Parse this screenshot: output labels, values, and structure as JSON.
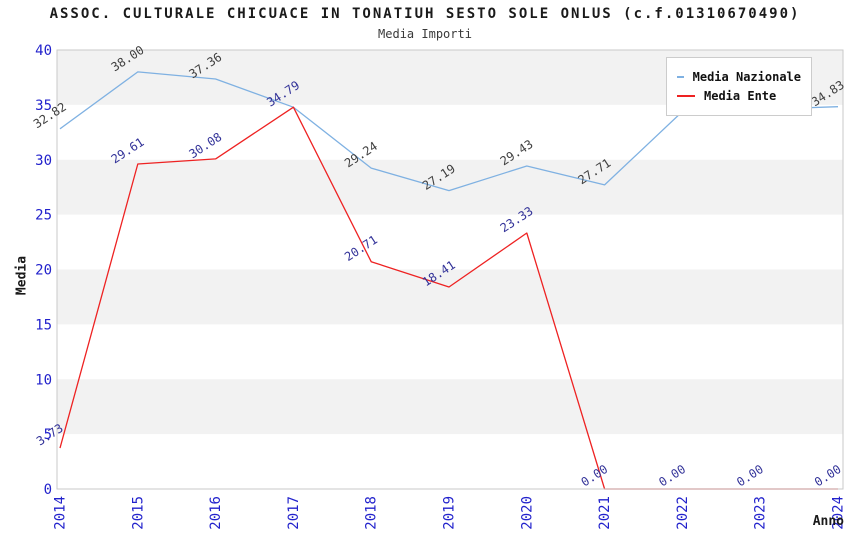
{
  "title": "ASSOC. CULTURALE CHICUACE IN TONATIUH SESTO SOLE ONLUS (c.f.01310670490)",
  "subtitle": "Media Importi",
  "colors": {
    "band": "#f2f2f2",
    "frame": "#c9c9c9",
    "tick_blue": "#2222cc",
    "nazionale_line": "#7fb1e2",
    "ente_line": "#ee2222",
    "nazionale_label": "#404040",
    "ente_label": "#333399"
  },
  "chart_data": {
    "type": "line",
    "x": [
      2014,
      2015,
      2016,
      2017,
      2018,
      2019,
      2020,
      2021,
      2022,
      2023,
      2024
    ],
    "xlabel": "Anno",
    "ylabel": "Media",
    "ylim": [
      0,
      40
    ],
    "yticks": [
      0,
      5,
      10,
      15,
      20,
      25,
      30,
      35,
      40
    ],
    "grid": "alternating-horizontal-bands",
    "band_ranges": [
      [
        35,
        40
      ],
      [
        25,
        30
      ],
      [
        15,
        20
      ],
      [
        5,
        10
      ]
    ],
    "legend_position": "top-right-inside",
    "series": [
      {
        "name": "Media Nazionale",
        "color": "#7fb1e2",
        "label_color": "#404040",
        "values": [
          32.82,
          38.0,
          37.36,
          34.79,
          29.24,
          27.19,
          29.43,
          27.71,
          34.4,
          34.6,
          34.83
        ],
        "point_labels": [
          "32.82",
          "38.00",
          "37.36",
          "",
          "29.24",
          "27.19",
          "29.43",
          "27.71",
          "",
          "",
          "34.83"
        ]
      },
      {
        "name": "Media Ente",
        "color": "#ee2222",
        "label_color": "#333399",
        "values": [
          3.73,
          29.61,
          30.08,
          34.79,
          20.71,
          18.41,
          23.33,
          0.0,
          0.0,
          0.0,
          0.0
        ],
        "point_labels": [
          "3.73",
          "29.61",
          "30.08",
          "34.79",
          "20.71",
          "18.41",
          "23.33",
          "0.00",
          "0.00",
          "0.00",
          "0.00"
        ]
      }
    ]
  }
}
